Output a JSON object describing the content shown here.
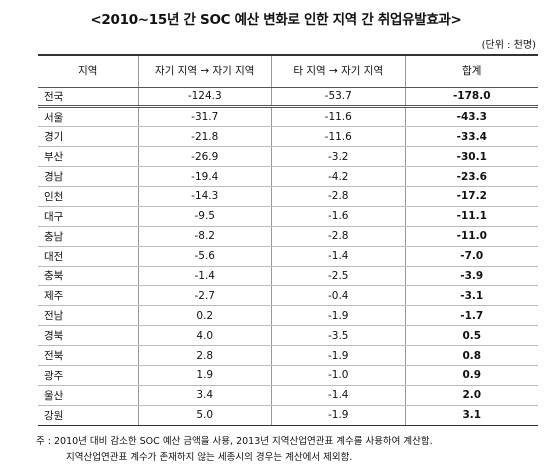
{
  "title": "<2010~15년 간 SOC 예산 변화로 인한 지역 간 취업유발효과>",
  "unit": "(단위 : 천명)",
  "table": {
    "header": [
      "지역",
      "자기 지역 → 자기 지역",
      "타 지역 → 자기 지역",
      "합계"
    ],
    "rows": [
      [
        "전국",
        "-124.3",
        "-53.7",
        "-178.0"
      ],
      [
        "서울",
        "-31.7",
        "-11.6",
        "-43.3"
      ],
      [
        "경기",
        "-21.8",
        "-11.6",
        "-33.4"
      ],
      [
        "부산",
        "-26.9",
        "-3.2",
        "-30.1"
      ],
      [
        "경남",
        "-19.4",
        "-4.2",
        "-23.6"
      ],
      [
        "인천",
        "-14.3",
        "-2.8",
        "-17.2"
      ],
      [
        "대구",
        "-9.5",
        "-1.6",
        "-11.1"
      ],
      [
        "충남",
        "-8.2",
        "-2.8",
        "-11.0"
      ],
      [
        "대전",
        "-5.6",
        "-1.4",
        "-7.0"
      ],
      [
        "충북",
        "-1.4",
        "-2.5",
        "-3.9"
      ],
      [
        "제주",
        "-2.7",
        "-0.4",
        "-3.1"
      ],
      [
        "전남",
        "0.2",
        "-1.9",
        "-1.7"
      ],
      [
        "경북",
        "4.0",
        "-3.5",
        "0.5"
      ],
      [
        "전북",
        "2.8",
        "-1.9",
        "0.8"
      ],
      [
        "광주",
        "1.9",
        "-1.0",
        "0.9"
      ],
      [
        "울산",
        "3.4",
        "-1.4",
        "2.0"
      ],
      [
        "강원",
        "5.0",
        "-1.9",
        "3.1"
      ]
    ]
  },
  "note": {
    "lines": [
      "주 : 2010년 대비 감소한 SOC 예산 금액을 사용, 2013년 지역산업연관표 계수를 사용하여 계산함.",
      "지역산업연관표 계수가 존재하지 않는 세종시의 경우는 계산에서 제외함."
    ]
  }
}
